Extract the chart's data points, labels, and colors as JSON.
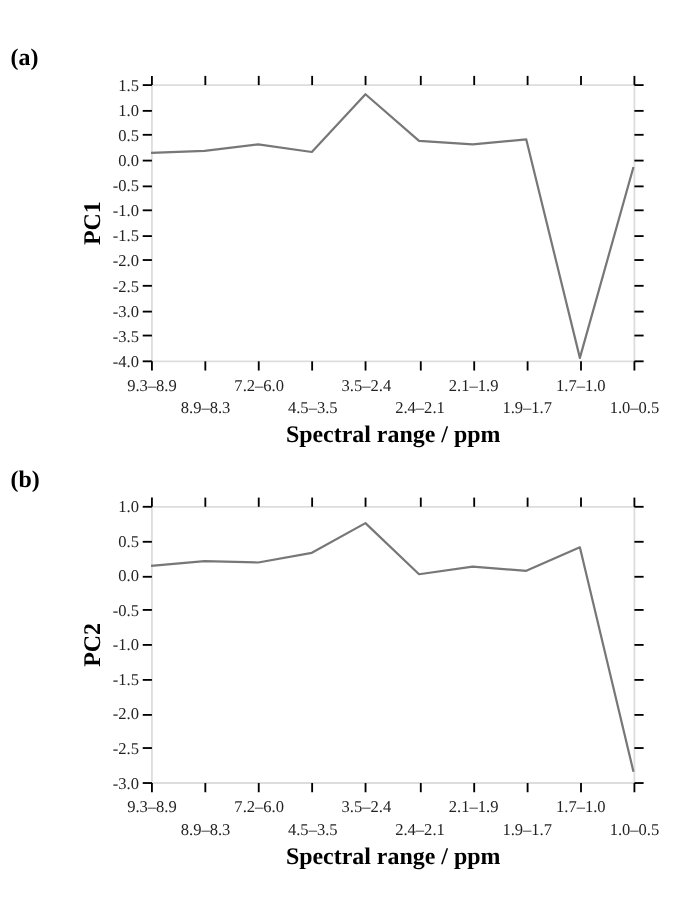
{
  "chart_data": [
    {
      "type": "line",
      "title": "(a)",
      "xlabel": "Spectral range / ppm",
      "ylabel": "PC1",
      "categories": [
        "9.3–8.9",
        "8.9–8.3",
        "7.2–6.0",
        "4.5–3.5",
        "3.5–2.4",
        "2.4–2.1",
        "2.1–1.9",
        "1.9–1.7",
        "1.7–1.0",
        "1.0–0.5"
      ],
      "series": [
        {
          "color": "#777777",
          "values": [
            0.13,
            0.17,
            0.3,
            0.15,
            1.3,
            0.37,
            0.3,
            0.4,
            -3.95,
            -0.15
          ]
        }
      ],
      "ylim": [
        -4.0,
        1.5
      ],
      "yticks": [
        {
          "value": 1.5,
          "label": "1.5"
        },
        {
          "value": 1.0,
          "label": "1.0"
        },
        {
          "value": 0.5,
          "label": "0.5"
        },
        {
          "value": 0.0,
          "label": "0.0"
        },
        {
          "value": -0.5,
          "label": "-0.5"
        },
        {
          "value": -1.0,
          "label": "-1.0"
        },
        {
          "value": -1.5,
          "label": "-1.5"
        },
        {
          "value": -2.0,
          "label": "-2.0"
        },
        {
          "value": -2.5,
          "label": "-2.5"
        },
        {
          "value": -3.0,
          "label": "-3.0"
        },
        {
          "value": -3.5,
          "label": "-3.5"
        },
        {
          "value": -4.0,
          "label": "-4.0"
        }
      ],
      "grid": false,
      "marker": "none",
      "line_style": "solid"
    },
    {
      "type": "line",
      "title": "(b)",
      "xlabel": "Spectral range / ppm",
      "ylabel": "PC2",
      "categories": [
        "9.3–8.9",
        "8.9–8.3",
        "7.2–6.0",
        "4.5–3.5",
        "3.5–2.4",
        "2.4–2.1",
        "2.1–1.9",
        "1.9–1.7",
        "1.7–1.0",
        "1.0–0.5"
      ],
      "series": [
        {
          "color": "#777777",
          "values": [
            0.13,
            0.2,
            0.18,
            0.32,
            0.75,
            0.01,
            0.12,
            0.06,
            0.4,
            -2.85
          ]
        }
      ],
      "ylim": [
        -3.0,
        1.0
      ],
      "yticks": [
        {
          "value": 1.0,
          "label": "1.0"
        },
        {
          "value": 0.5,
          "label": "0.5"
        },
        {
          "value": 0.0,
          "label": "0.0"
        },
        {
          "value": -0.5,
          "label": "-0.5"
        },
        {
          "value": -1.0,
          "label": "-1.0"
        },
        {
          "value": -1.5,
          "label": "-1.5"
        },
        {
          "value": -2.0,
          "label": "-2.0"
        },
        {
          "value": -2.5,
          "label": "-2.5"
        },
        {
          "value": -3.0,
          "label": "-3.0"
        }
      ],
      "grid": false,
      "marker": "none",
      "line_style": "solid"
    }
  ]
}
